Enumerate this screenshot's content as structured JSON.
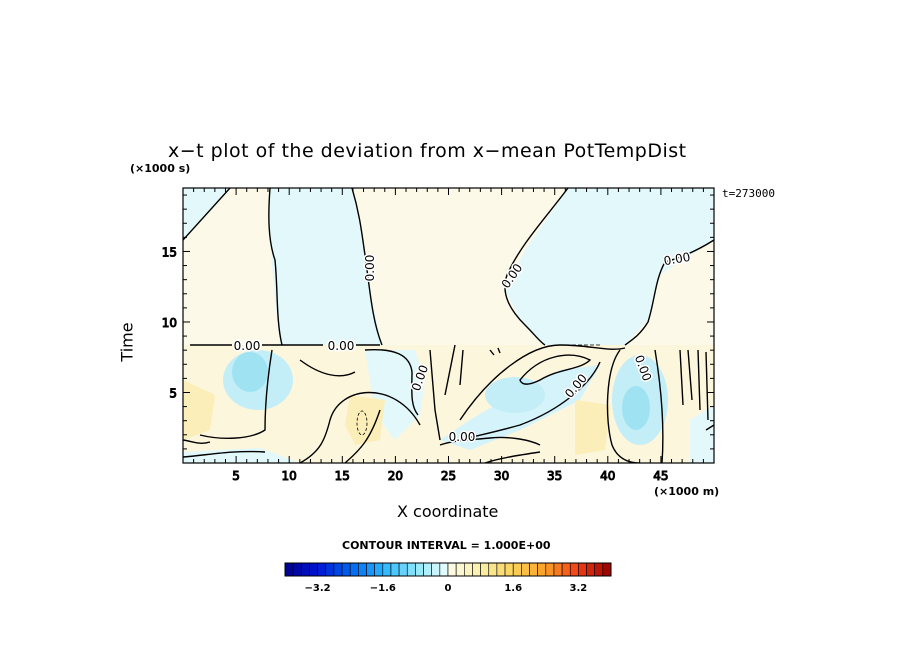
{
  "chart_data": {
    "type": "heatmap",
    "title": "x−t plot of the deviation from x−mean PotTempDist",
    "xlabel": "X coordinate",
    "ylabel": "Time",
    "x_unit": "(×1000 m)",
    "y_unit": "(×1000 s)",
    "time_label": "t=273000",
    "xlim": [
      0,
      50
    ],
    "ylim": [
      0,
      19.5
    ],
    "xticks": [
      5,
      10,
      15,
      20,
      25,
      30,
      35,
      40,
      45
    ],
    "yticks": [
      5,
      10,
      15
    ],
    "contour_interval_label": "CONTOUR INTERVAL = 1.000E+00",
    "contour_labels": [
      "0.00",
      "0.00",
      "0.00",
      "0.00",
      "0.00",
      "0.00",
      "0.00",
      "0.00",
      "0.00"
    ],
    "colorbar": {
      "range": [
        -4,
        4
      ],
      "ticks": [
        -3.2,
        -1.6,
        0,
        1.6,
        3.2
      ],
      "tick_labels": [
        "−3.2",
        "−1.6",
        "0",
        "1.6",
        "3.2"
      ]
    },
    "grid": false
  }
}
